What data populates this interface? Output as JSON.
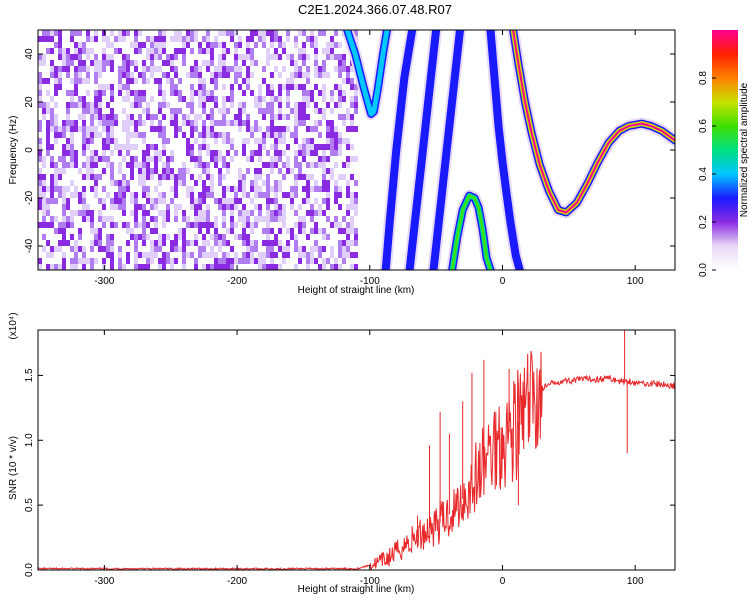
{
  "title": "C2E1.2024.366.07.48.R07",
  "chart_data": [
    {
      "type": "heatmap",
      "xlabel": "Height of straight line (km)",
      "ylabel": "Frequency (Hz)",
      "xlim": [
        -350,
        130
      ],
      "ylim": [
        -50,
        50
      ],
      "xticks": [
        -300,
        -200,
        -100,
        0,
        100
      ],
      "yticks": [
        -40,
        -20,
        0,
        20,
        40
      ],
      "colorbar": {
        "label": "Normalized spectral amplitude",
        "range": [
          0,
          1
        ],
        "ticks": [
          "0.0",
          "0.2",
          "0.4",
          "0.6",
          "0.8"
        ],
        "colors": [
          "#ffffff",
          "#e8d8f8",
          "#8a2be2",
          "#1a1aff",
          "#00c8ff",
          "#00e080",
          "#40e000",
          "#c8e000",
          "#ff8000",
          "#ff2000",
          "#ff0090"
        ]
      },
      "noise_region_x": [
        -350,
        -110
      ],
      "tracks": [
        {
          "x": [
            -117,
            -111,
            -105,
            -101,
            -99,
            -97,
            -94,
            -90,
            -87
          ],
          "y": [
            50,
            40,
            27,
            19,
            15,
            16,
            25,
            40,
            50
          ],
          "peak": 0.35
        },
        {
          "x": [
            -88,
            -85,
            -80,
            -74,
            -68
          ],
          "y": [
            -50,
            -30,
            0,
            30,
            50
          ],
          "peak": 0.25
        },
        {
          "x": [
            -70,
            -66,
            -60,
            -54,
            -50
          ],
          "y": [
            -50,
            -30,
            0,
            30,
            50
          ],
          "peak": 0.25
        },
        {
          "x": [
            -52,
            -48,
            -42,
            -36,
            -32
          ],
          "y": [
            -50,
            -30,
            0,
            30,
            50
          ],
          "peak": 0.25
        },
        {
          "x": [
            -38,
            -34,
            -30,
            -25,
            -21,
            -18,
            -15,
            -12,
            -9
          ],
          "y": [
            -50,
            -36,
            -25,
            -19,
            -20,
            -24,
            -33,
            -45,
            -50
          ],
          "peak": 0.55
        },
        {
          "x": [
            -9,
            -6,
            -3,
            0,
            3,
            6,
            10,
            13
          ],
          "y": [
            50,
            30,
            10,
            -5,
            -18,
            -30,
            -44,
            -50
          ],
          "peak": 0.3
        },
        {
          "x": [
            8,
            12,
            17,
            22,
            28,
            35,
            42,
            48,
            56,
            64,
            72,
            80,
            88,
            95,
            105,
            112,
            120,
            130
          ],
          "y": [
            50,
            36,
            20,
            7,
            -6,
            -17,
            -25,
            -26,
            -22,
            -14,
            -5,
            3,
            8,
            10,
            11,
            10,
            8,
            4
          ],
          "peak": 0.95
        }
      ]
    },
    {
      "type": "line",
      "xlabel": "Height of straight line (km)",
      "ylabel": "SNR (10 * v/v)",
      "y_multiplier": "(x10⁴)",
      "xlim": [
        -350,
        130
      ],
      "ylim": [
        0,
        1.85
      ],
      "xticks": [
        -300,
        -200,
        -100,
        0,
        100
      ],
      "yticks": [
        "0.0",
        "0.5",
        "1.0",
        "1.5"
      ],
      "series": [
        {
          "color": "#e8282a",
          "x": [
            -350,
            -200,
            -110,
            -95,
            -85,
            -75,
            -65,
            -55,
            -45,
            -35,
            -25,
            -15,
            -5,
            0,
            5,
            10,
            15,
            20,
            25,
            30,
            40,
            50,
            60,
            70,
            80,
            90,
            95,
            100,
            110,
            120,
            130
          ],
          "y": [
            0.01,
            0.01,
            0.01,
            0.05,
            0.1,
            0.18,
            0.25,
            0.32,
            0.38,
            0.48,
            0.62,
            0.8,
            0.98,
            1.02,
            1.06,
            1.12,
            1.18,
            1.25,
            1.33,
            1.4,
            1.45,
            1.46,
            1.47,
            1.47,
            1.48,
            1.45,
            1.46,
            1.44,
            1.44,
            1.43,
            1.42
          ]
        }
      ],
      "spikes": [
        {
          "x": -64,
          "y": 0.42
        },
        {
          "x": -55,
          "y": 0.96
        },
        {
          "x": -47,
          "y": 1.22
        },
        {
          "x": -40,
          "y": 1.05
        },
        {
          "x": -30,
          "y": 1.3
        },
        {
          "x": -23,
          "y": 1.52
        },
        {
          "x": -14,
          "y": 1.62
        },
        {
          "x": 5,
          "y": 1.55
        },
        {
          "x": 8,
          "y": 0.95
        },
        {
          "x": 12,
          "y": 0.5
        },
        {
          "x": 14,
          "y": 1.12
        },
        {
          "x": 92,
          "y": 1.85
        },
        {
          "x": 94,
          "y": 0.9
        }
      ]
    }
  ]
}
